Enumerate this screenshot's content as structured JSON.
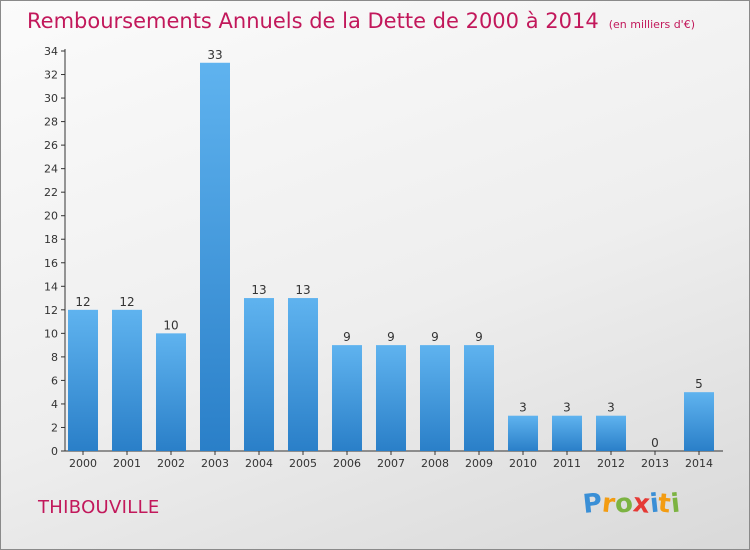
{
  "chart_data": {
    "type": "bar",
    "title": "Remboursements Annuels de la Dette de 2000 à 2014",
    "subtitle": "(en milliers d'€)",
    "categories": [
      "2000",
      "2001",
      "2002",
      "2003",
      "2004",
      "2005",
      "2006",
      "2007",
      "2008",
      "2009",
      "2010",
      "2011",
      "2012",
      "2013",
      "2014"
    ],
    "values": [
      12,
      12,
      10,
      33,
      13,
      13,
      9,
      9,
      9,
      9,
      3,
      3,
      3,
      0,
      5
    ],
    "ylim": [
      0,
      34
    ],
    "yticks": [
      0,
      2,
      4,
      6,
      8,
      10,
      12,
      14,
      16,
      18,
      20,
      22,
      24,
      26,
      28,
      30,
      32,
      34
    ],
    "grid": false,
    "xlabel": "",
    "ylabel": ""
  },
  "commune": "THIBOUVILLE",
  "logo": {
    "letters": [
      "P",
      "r",
      "o",
      "x",
      "i",
      "t",
      "i"
    ],
    "colors": [
      "#3a8fd6",
      "#f39c12",
      "#7cb342",
      "#e53935",
      "#3a8fd6",
      "#f39c12",
      "#7cb342"
    ]
  },
  "colors": {
    "title": "#c2185b",
    "bar_light": "#5fb3ef",
    "bar_dark": "#2a7fc8",
    "axis": "#333333"
  }
}
